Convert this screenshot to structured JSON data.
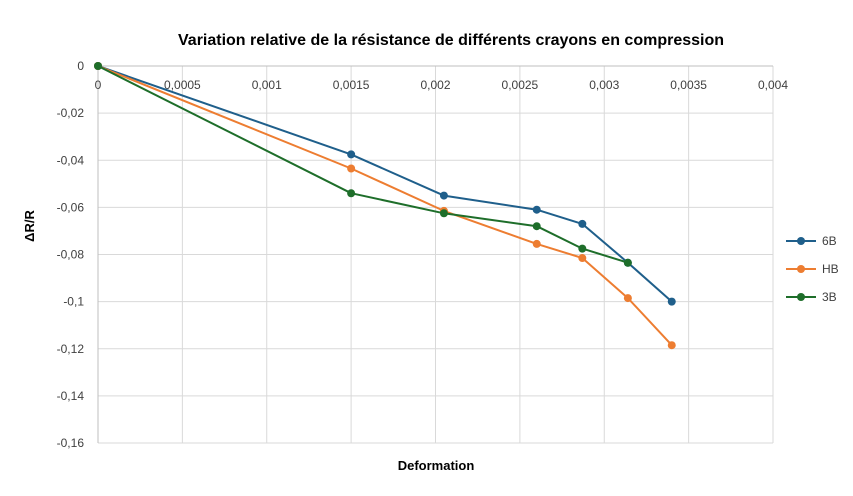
{
  "chart_data": {
    "type": "line",
    "title": "Variation relative de la résistance de différents crayons en compression",
    "xlabel": "Deformation",
    "ylabel": "ΔR/R",
    "xlim": [
      0,
      0.004
    ],
    "ylim": [
      -0.16,
      0
    ],
    "x_ticks": [
      "0",
      "0,0005",
      "0,001",
      "0,0015",
      "0,002",
      "0,0025",
      "0,003",
      "0,0035",
      "0,004"
    ],
    "y_ticks": [
      "0",
      "-0,02",
      "-0,04",
      "-0,06",
      "-0,08",
      "-0,1",
      "-0,12",
      "-0,14",
      "-0,16"
    ],
    "grid": true,
    "legend_position": "right",
    "series": [
      {
        "name": "6B",
        "color": "#1f5f8b",
        "points": [
          [
            0,
            0
          ],
          [
            0.0015,
            -0.0375
          ],
          [
            0.00205,
            -0.055
          ],
          [
            0.0026,
            -0.061
          ],
          [
            0.00287,
            -0.067
          ],
          [
            0.00314,
            -0.0835
          ],
          [
            0.0034,
            -0.1
          ]
        ]
      },
      {
        "name": "HB",
        "color": "#ed7d31",
        "points": [
          [
            0,
            0
          ],
          [
            0.0015,
            -0.0435
          ],
          [
            0.00205,
            -0.0615
          ],
          [
            0.0026,
            -0.0755
          ],
          [
            0.00287,
            -0.0815
          ],
          [
            0.00314,
            -0.0985
          ],
          [
            0.0034,
            -0.1185
          ]
        ]
      },
      {
        "name": "3B",
        "color": "#1e6e2a",
        "points": [
          [
            0,
            0
          ],
          [
            0.0015,
            -0.054
          ],
          [
            0.00205,
            -0.0625
          ],
          [
            0.0026,
            -0.068
          ],
          [
            0.00287,
            -0.0775
          ],
          [
            0.00314,
            -0.0835
          ]
        ]
      }
    ]
  }
}
